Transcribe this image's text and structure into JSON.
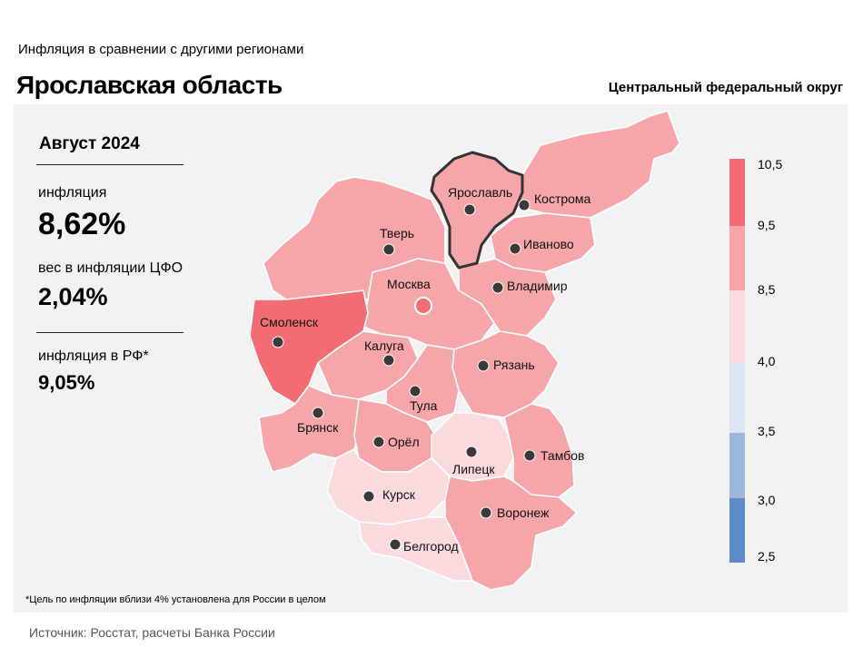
{
  "header": {
    "subtitle": "Инфляция  в сравнении  с другими  регионами",
    "title": "Ярославская область",
    "district": "Центральный федеральный округ"
  },
  "stats": {
    "period": "Август 2024",
    "inflation_label": "инфляция",
    "inflation_value": "8,62%",
    "weight_label": "вес в инфляции  ЦФО",
    "weight_value": "2,04%",
    "rf_label": "инфляция  в РФ*",
    "rf_value": "9,05%"
  },
  "legend": {
    "ticks": [
      "10,5",
      "9,5",
      "8,5",
      "4,0",
      "3,5",
      "3,0",
      "2,5"
    ],
    "colors": [
      "#f16d73",
      "#f6a5a8",
      "#fadadc",
      "#dce6f2",
      "#9bb7db",
      "#5b8bc9"
    ]
  },
  "regions": {
    "yaroslavl": "Ярославль",
    "kostroma": "Кострома",
    "tver": "Тверь",
    "ivanovo": "Иваново",
    "moskva": "Москва",
    "vladimir": "Владимир",
    "smolensk": "Смоленск",
    "kaluga": "Калуга",
    "ryazan": "Рязань",
    "tula": "Тула",
    "bryansk": "Брянск",
    "orel": "Орёл",
    "lipetsk": "Липецк",
    "tambov": "Тамбов",
    "kursk": "Курск",
    "voronezh": "Воронеж",
    "belgorod": "Белгород"
  },
  "footnote": "*Цель по инфляции вблизи 4% установлена для России в целом",
  "source": "Источник: Росстат, расчеты Банка России"
}
